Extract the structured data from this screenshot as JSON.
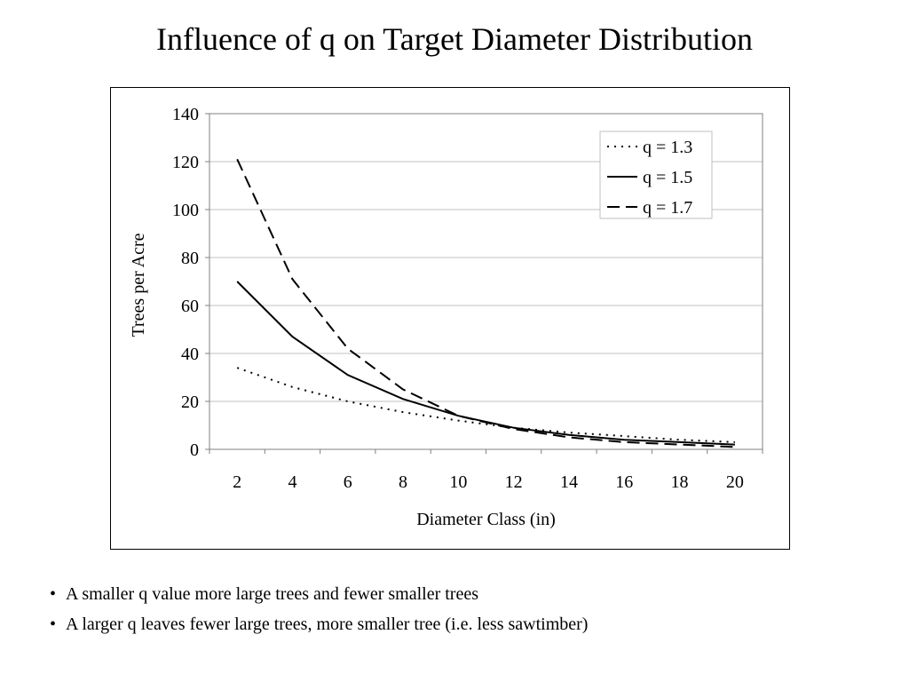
{
  "slide": {
    "title": "Influence of q on Target Diameter Distribution",
    "bullets": [
      "A smaller q value more large trees and fewer smaller trees",
      "A larger q leaves fewer large trees, more smaller tree (i.e. less sawtimber)"
    ]
  },
  "chart_data": {
    "type": "line",
    "title": "",
    "xlabel": "Diameter Class (in)",
    "ylabel": "Trees per Acre",
    "x": [
      2,
      4,
      6,
      8,
      10,
      12,
      14,
      16,
      18,
      20
    ],
    "x_ticks": [
      "2",
      "4",
      "6",
      "8",
      "10",
      "12",
      "14",
      "16",
      "18",
      "20"
    ],
    "y_ticks": [
      "0",
      "20",
      "40",
      "60",
      "80",
      "100",
      "120",
      "140"
    ],
    "ylim": [
      0,
      140
    ],
    "grid": "horizontal",
    "legend_position": "top-right",
    "series": [
      {
        "name": "q = 1.3",
        "style": "dotted",
        "color": "#000000",
        "values": [
          34,
          26,
          20,
          15.5,
          12,
          9,
          7,
          5.5,
          4,
          3
        ]
      },
      {
        "name": "q = 1.5",
        "style": "solid",
        "color": "#000000",
        "values": [
          70,
          47,
          31,
          21,
          14,
          9,
          6,
          4,
          3,
          2
        ]
      },
      {
        "name": "q = 1.7",
        "style": "dashed",
        "color": "#000000",
        "values": [
          121,
          71,
          42,
          25,
          14,
          8.5,
          5,
          3,
          2,
          1
        ]
      }
    ]
  }
}
